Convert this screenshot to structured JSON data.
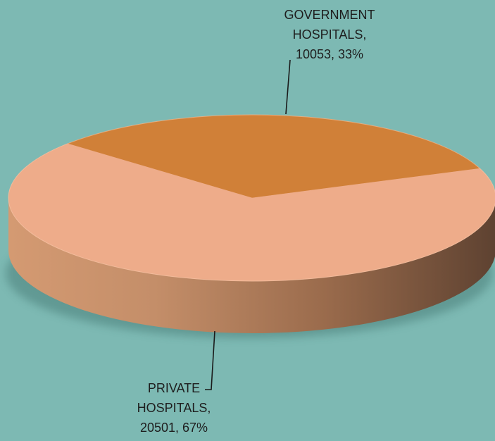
{
  "chart_data": {
    "type": "pie",
    "style": "3d",
    "background": "#7db9b3",
    "slices": [
      {
        "name": "GOVERNMENT HOSPITALS",
        "value": 10053,
        "percent": 33,
        "color": "#d08038",
        "label_lines": [
          "GOVERNMENT",
          "HOSPITALS,",
          "10053, 33%"
        ]
      },
      {
        "name": "PRIVATE HOSPITALS",
        "value": 20501,
        "percent": 67,
        "color": "#eeac8a",
        "label_lines": [
          "PRIVATE",
          "HOSPITALS,",
          "20501, 67%"
        ]
      }
    ]
  }
}
